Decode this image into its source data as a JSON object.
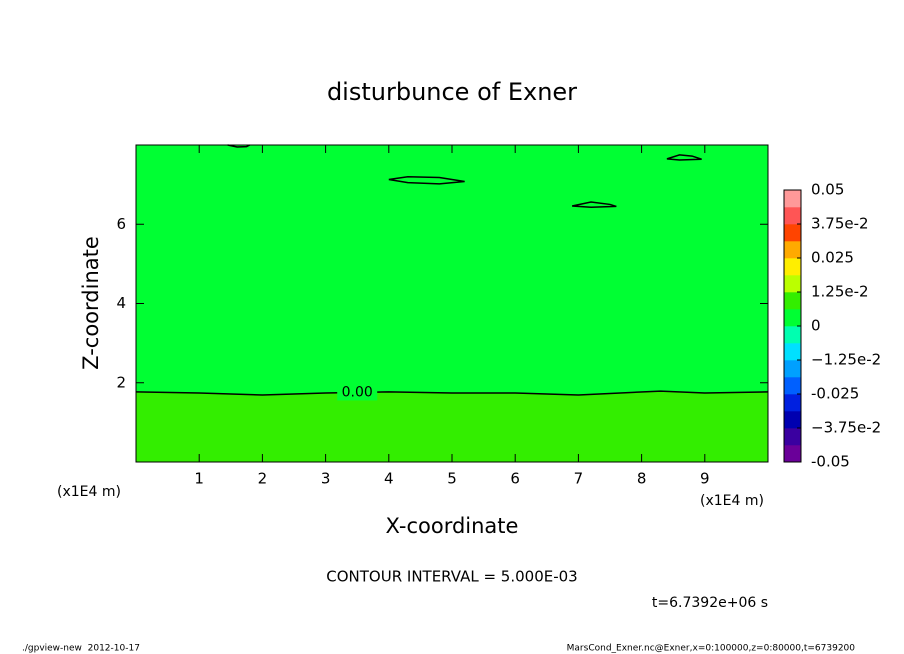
{
  "chart_data": {
    "type": "contour",
    "title": "disturbunce of Exner",
    "x_label": "X-coordinate",
    "y_label": "Z-coordinate",
    "x_unit": "(x1E4 m)",
    "y_unit": "(x1E4 m)",
    "xlim": [
      0,
      10
    ],
    "ylim": [
      0,
      8
    ],
    "xticks": [
      1,
      2,
      3,
      4,
      5,
      6,
      7,
      8,
      9
    ],
    "yticks": [
      2,
      4,
      6
    ],
    "fill_below": "#33ee00",
    "fill_above": "#00ff33",
    "line_color": "#000000",
    "contours": [
      {
        "label": "0.00",
        "x": [
          0,
          1,
          2,
          3,
          4,
          5,
          6,
          7,
          8.3,
          9,
          10
        ],
        "y": [
          1.77,
          1.74,
          1.69,
          1.74,
          1.77,
          1.74,
          1.74,
          1.69,
          1.79,
          1.74,
          1.77
        ]
      },
      {
        "x": [
          4.0,
          4.3,
          4.8,
          5.2,
          4.8,
          4.3,
          4.0
        ],
        "y": [
          7.13,
          7.2,
          7.18,
          7.08,
          7.02,
          7.05,
          7.13
        ]
      },
      {
        "x": [
          6.9,
          7.2,
          7.5,
          7.6,
          7.2,
          6.9
        ],
        "y": [
          6.46,
          6.56,
          6.5,
          6.45,
          6.43,
          6.46
        ]
      },
      {
        "x": [
          8.4,
          8.6,
          8.8,
          8.95,
          8.6,
          8.4
        ],
        "y": [
          7.65,
          7.75,
          7.72,
          7.64,
          7.62,
          7.65
        ]
      },
      {
        "x": [
          1.45,
          1.6,
          1.75,
          1.8
        ],
        "y": [
          8.0,
          7.95,
          7.96,
          8.0
        ]
      }
    ],
    "colorbar": {
      "clim": [
        -0.05,
        0.05
      ],
      "colors": [
        "#6a0099",
        "#3a00a0",
        "#0000b0",
        "#0020e0",
        "#0060ff",
        "#00a0ff",
        "#00e0ff",
        "#00ffb0",
        "#00ff33",
        "#33ee00",
        "#bbff00",
        "#ffee00",
        "#ffaa00",
        "#ff4400",
        "#ff5555",
        "#ff9999"
      ],
      "ticks": [
        -0.05,
        {
          "value": -0.0375,
          "label": "−3.75e-2"
        },
        -0.025,
        {
          "value": -0.0125,
          "label": "−1.25e-2"
        },
        0,
        {
          "value": 0.0125,
          "label": "1.25e-2"
        },
        0.025,
        {
          "value": 0.0375,
          "label": "3.75e-2"
        },
        0.05
      ]
    },
    "interval_text": "CONTOUR INTERVAL = 5.000E-03",
    "time_text": "t=6.7392e+06 s",
    "footer_left": "./gpview-new  2012-10-17",
    "footer_right": "MarsCond_Exner.nc@Exner,x=0:100000,z=0:80000,t=6739200"
  }
}
